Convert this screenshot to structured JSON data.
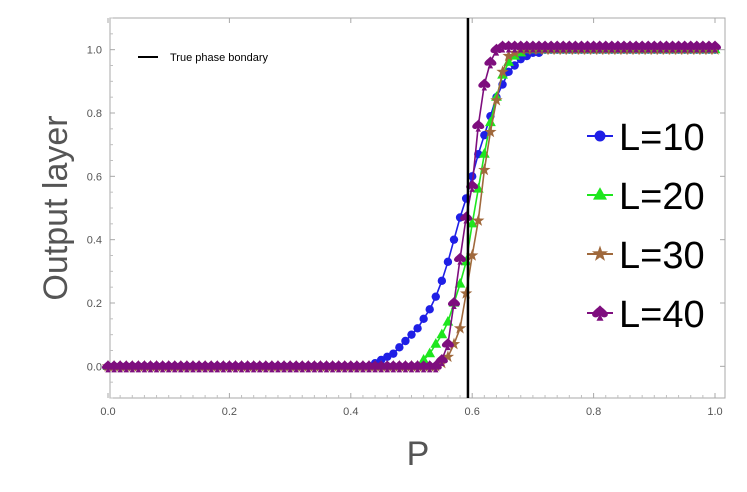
{
  "chart_data": {
    "type": "line",
    "xlabel": "P",
    "ylabel": "Output layer",
    "xlim": [
      0,
      1
    ],
    "ylim": [
      -0.1,
      1.1
    ],
    "xticks": [
      "0.0",
      "0.2",
      "0.4",
      "0.6",
      "0.8",
      "1.0"
    ],
    "yticks": [
      "0.0",
      "0.2",
      "0.4",
      "0.6",
      "0.8",
      "1.0"
    ],
    "grid": false,
    "legend_position": "right",
    "vline": {
      "x": 0.593,
      "label": "True phase bondary",
      "color": "#000000"
    },
    "x": [
      0.0,
      0.01,
      0.02,
      0.03,
      0.04,
      0.05,
      0.06,
      0.07,
      0.08,
      0.09,
      0.1,
      0.11,
      0.12,
      0.13,
      0.14,
      0.15,
      0.16,
      0.17,
      0.18,
      0.19,
      0.2,
      0.21,
      0.22,
      0.23,
      0.24,
      0.25,
      0.26,
      0.27,
      0.28,
      0.29,
      0.3,
      0.31,
      0.32,
      0.33,
      0.34,
      0.35,
      0.36,
      0.37,
      0.38,
      0.39,
      0.4,
      0.41,
      0.42,
      0.43,
      0.44,
      0.45,
      0.46,
      0.47,
      0.48,
      0.49,
      0.5,
      0.51,
      0.52,
      0.53,
      0.54,
      0.55,
      0.56,
      0.57,
      0.58,
      0.59,
      0.6,
      0.61,
      0.62,
      0.63,
      0.64,
      0.65,
      0.66,
      0.67,
      0.68,
      0.69,
      0.7,
      0.71,
      0.72,
      0.73,
      0.74,
      0.75,
      0.76,
      0.77,
      0.78,
      0.79,
      0.8,
      0.81,
      0.82,
      0.83,
      0.84,
      0.85,
      0.86,
      0.87,
      0.88,
      0.89,
      0.9,
      0.91,
      0.92,
      0.93,
      0.94,
      0.95,
      0.96,
      0.97,
      0.98,
      0.99,
      1.0
    ],
    "series": [
      {
        "name": "L=10",
        "color": "#1f1fe6",
        "marker": "circle",
        "values": [
          0.0,
          0.0,
          0.0,
          0.0,
          0.0,
          0.0,
          0.0,
          0.0,
          0.0,
          0.0,
          0.0,
          0.0,
          0.0,
          0.0,
          0.0,
          0.0,
          0.0,
          0.0,
          0.0,
          0.0,
          0.0,
          0.0,
          0.0,
          0.0,
          0.0,
          0.0,
          0.0,
          0.0,
          0.0,
          0.0,
          0.0,
          0.0,
          0.0,
          0.0,
          0.0,
          0.0,
          0.0,
          0.0,
          0.0,
          0.0,
          0.0,
          0.0,
          0.0,
          0.0,
          0.01,
          0.02,
          0.03,
          0.04,
          0.06,
          0.08,
          0.1,
          0.12,
          0.15,
          0.18,
          0.22,
          0.27,
          0.33,
          0.4,
          0.47,
          0.53,
          0.6,
          0.67,
          0.73,
          0.79,
          0.85,
          0.89,
          0.93,
          0.95,
          0.97,
          0.98,
          0.99,
          0.99,
          1.0,
          1.0,
          1.0,
          1.0,
          1.0,
          1.0,
          1.0,
          1.0,
          1.0,
          1.0,
          1.0,
          1.0,
          1.0,
          1.0,
          1.0,
          1.0,
          1.0,
          1.0,
          1.0,
          1.0,
          1.0,
          1.0,
          1.0,
          1.0,
          1.0,
          1.0,
          1.0,
          1.0,
          1.0
        ]
      },
      {
        "name": "L=20",
        "color": "#1ee61e",
        "marker": "triangle",
        "values": [
          0.0,
          0.0,
          0.0,
          0.0,
          0.0,
          0.0,
          0.0,
          0.0,
          0.0,
          0.0,
          0.0,
          0.0,
          0.0,
          0.0,
          0.0,
          0.0,
          0.0,
          0.0,
          0.0,
          0.0,
          0.0,
          0.0,
          0.0,
          0.0,
          0.0,
          0.0,
          0.0,
          0.0,
          0.0,
          0.0,
          0.0,
          0.0,
          0.0,
          0.0,
          0.0,
          0.0,
          0.0,
          0.0,
          0.0,
          0.0,
          0.0,
          0.0,
          0.0,
          0.0,
          0.0,
          0.0,
          0.0,
          0.0,
          0.0,
          0.0,
          0.0,
          0.0,
          0.02,
          0.04,
          0.07,
          0.1,
          0.14,
          0.2,
          0.26,
          0.33,
          0.45,
          0.56,
          0.67,
          0.77,
          0.85,
          0.92,
          0.96,
          0.98,
          0.99,
          1.0,
          1.0,
          1.0,
          1.0,
          1.0,
          1.0,
          1.0,
          1.0,
          1.0,
          1.0,
          1.0,
          1.0,
          1.0,
          1.0,
          1.0,
          1.0,
          1.0,
          1.0,
          1.0,
          1.0,
          1.0,
          1.0,
          1.0,
          1.0,
          1.0,
          1.0,
          1.0,
          1.0,
          1.0,
          1.0,
          1.0,
          1.0
        ]
      },
      {
        "name": "L=30",
        "color": "#a0693c",
        "marker": "star",
        "values": [
          0.0,
          0.0,
          0.0,
          0.0,
          0.0,
          0.0,
          0.0,
          0.0,
          0.0,
          0.0,
          0.0,
          0.0,
          0.0,
          0.0,
          0.0,
          0.0,
          0.0,
          0.0,
          0.0,
          0.0,
          0.0,
          0.0,
          0.0,
          0.0,
          0.0,
          0.0,
          0.0,
          0.0,
          0.0,
          0.0,
          0.0,
          0.0,
          0.0,
          0.0,
          0.0,
          0.0,
          0.0,
          0.0,
          0.0,
          0.0,
          0.0,
          0.0,
          0.0,
          0.0,
          0.0,
          0.0,
          0.0,
          0.0,
          0.0,
          0.0,
          0.0,
          0.0,
          0.0,
          0.0,
          0.0,
          0.01,
          0.03,
          0.07,
          0.12,
          0.23,
          0.35,
          0.46,
          0.62,
          0.74,
          0.84,
          0.93,
          0.98,
          0.99,
          1.0,
          1.0,
          1.0,
          1.0,
          1.0,
          1.0,
          1.0,
          1.0,
          1.0,
          1.0,
          1.0,
          1.0,
          1.0,
          1.0,
          1.0,
          1.0,
          1.0,
          1.0,
          1.0,
          1.0,
          1.0,
          1.0,
          1.0,
          1.0,
          1.0,
          1.0,
          1.0,
          1.0,
          1.0,
          1.0,
          1.0,
          1.0,
          1.0
        ]
      },
      {
        "name": "L=40",
        "color": "#7e0e7e",
        "marker": "spade",
        "values": [
          0.0,
          0.0,
          0.0,
          0.0,
          0.0,
          0.0,
          0.0,
          0.0,
          0.0,
          0.0,
          0.0,
          0.0,
          0.0,
          0.0,
          0.0,
          0.0,
          0.0,
          0.0,
          0.0,
          0.0,
          0.0,
          0.0,
          0.0,
          0.0,
          0.0,
          0.0,
          0.0,
          0.0,
          0.0,
          0.0,
          0.0,
          0.0,
          0.0,
          0.0,
          0.0,
          0.0,
          0.0,
          0.0,
          0.0,
          0.0,
          0.0,
          0.0,
          0.0,
          0.0,
          0.0,
          0.0,
          0.0,
          0.0,
          0.0,
          0.0,
          0.0,
          0.0,
          0.0,
          0.0,
          0.0,
          0.02,
          0.07,
          0.2,
          0.34,
          0.47,
          0.57,
          0.76,
          0.89,
          0.96,
          1.0,
          1.01,
          1.01,
          1.01,
          1.01,
          1.01,
          1.01,
          1.01,
          1.01,
          1.01,
          1.01,
          1.01,
          1.01,
          1.01,
          1.01,
          1.01,
          1.01,
          1.01,
          1.01,
          1.01,
          1.01,
          1.01,
          1.01,
          1.01,
          1.01,
          1.01,
          1.01,
          1.01,
          1.01,
          1.01,
          1.01,
          1.01,
          1.01,
          1.01,
          1.01,
          1.01,
          1.01
        ]
      }
    ]
  }
}
